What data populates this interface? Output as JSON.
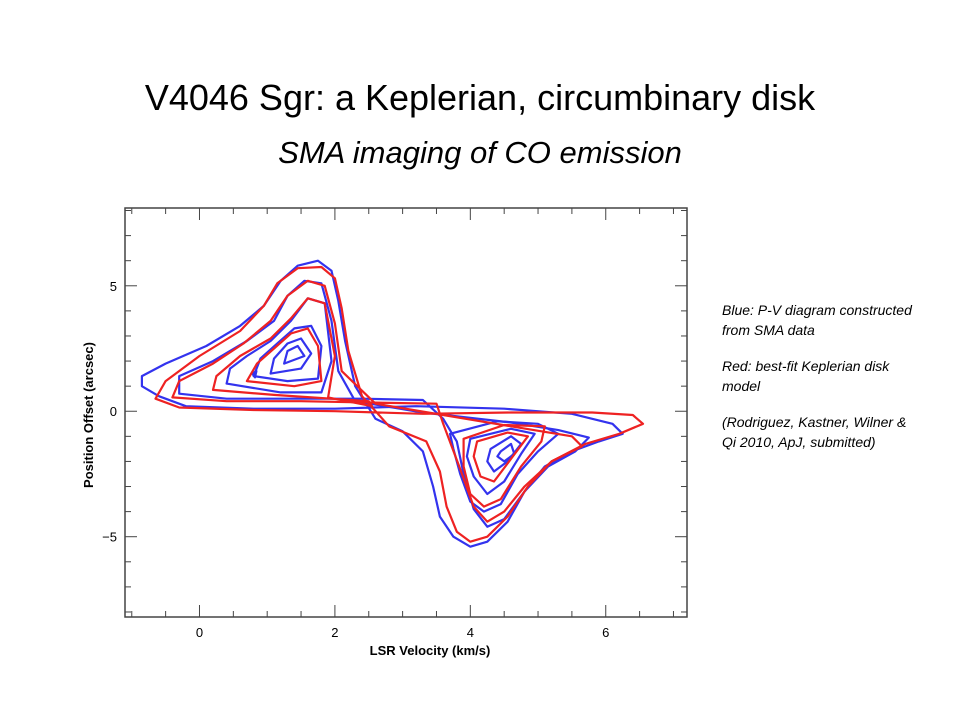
{
  "slide": {
    "title": "V4046 Sgr: a Keplerian, circumbinary disk",
    "subtitle": "SMA imaging of CO emission"
  },
  "notes": {
    "blue": "Blue: P-V diagram constructed from SMA data",
    "red": "Red: best-fit Keplerian disk model",
    "citation": "(Rodriguez, Kastner, Wilner & Qi 2010, ApJ, submitted)"
  },
  "chart_data": {
    "type": "contour",
    "title": "",
    "xlabel": "LSR Velocity (km/s)",
    "ylabel": "Position Offset (arcsec)",
    "xlim": [
      -1.1,
      7.2
    ],
    "ylim": [
      -8.2,
      8.1
    ],
    "xticks": [
      "0",
      "2",
      "4",
      "6"
    ],
    "xtick_values": [
      0,
      2,
      4,
      6
    ],
    "yticks": [
      "5",
      "0",
      "−5"
    ],
    "ytick_values": [
      5,
      0,
      -5
    ],
    "colors": {
      "observed": "#3333ee",
      "model": "#ee2222"
    },
    "series": [
      {
        "name": "Blue: P-V diagram constructed from SMA data",
        "color": "#3333ee",
        "contours": [
          [
            [
              -0.85,
              1.0
            ],
            [
              -0.6,
              0.6
            ],
            [
              -0.2,
              0.2
            ],
            [
              0.8,
              0.1
            ],
            [
              2.0,
              0.1
            ],
            [
              3.2,
              0.2
            ],
            [
              4.5,
              0.1
            ],
            [
              5.5,
              -0.1
            ],
            [
              6.1,
              -0.5
            ],
            [
              6.25,
              -0.9
            ],
            [
              5.9,
              -1.2
            ],
            [
              5.5,
              -1.6
            ],
            [
              5.1,
              -2.2
            ],
            [
              4.8,
              -3.2
            ],
            [
              4.55,
              -4.4
            ],
            [
              4.25,
              -5.2
            ],
            [
              4.0,
              -5.4
            ],
            [
              3.75,
              -5.0
            ],
            [
              3.55,
              -4.2
            ],
            [
              3.45,
              -3.0
            ],
            [
              3.3,
              -1.6
            ],
            [
              3.0,
              -0.8
            ],
            [
              2.6,
              -0.3
            ],
            [
              2.3,
              1.0
            ],
            [
              2.15,
              2.8
            ],
            [
              2.05,
              4.4
            ],
            [
              1.95,
              5.6
            ],
            [
              1.75,
              6.0
            ],
            [
              1.45,
              5.8
            ],
            [
              1.2,
              5.2
            ],
            [
              0.95,
              4.2
            ],
            [
              0.6,
              3.4
            ],
            [
              0.1,
              2.6
            ],
            [
              -0.5,
              1.9
            ],
            [
              -0.85,
              1.4
            ]
          ],
          [
            [
              -0.3,
              0.7
            ],
            [
              0.4,
              0.5
            ],
            [
              1.4,
              0.5
            ],
            [
              2.4,
              0.5
            ],
            [
              3.3,
              0.45
            ],
            [
              3.6,
              -0.3
            ],
            [
              3.8,
              -1.2
            ],
            [
              3.9,
              -2.5
            ],
            [
              4.05,
              -3.9
            ],
            [
              4.25,
              -4.6
            ],
            [
              4.5,
              -4.3
            ],
            [
              4.8,
              -3.2
            ],
            [
              5.15,
              -2.2
            ],
            [
              5.55,
              -1.6
            ],
            [
              5.75,
              -1.05
            ],
            [
              5.3,
              -0.75
            ],
            [
              4.6,
              -0.45
            ],
            [
              3.3,
              -0.05
            ],
            [
              2.3,
              0.4
            ],
            [
              2.05,
              1.6
            ],
            [
              1.95,
              3.6
            ],
            [
              1.8,
              5.1
            ],
            [
              1.55,
              5.2
            ],
            [
              1.3,
              4.6
            ],
            [
              1.1,
              3.6
            ],
            [
              0.7,
              2.8
            ],
            [
              0.2,
              2.0
            ],
            [
              -0.3,
              1.4
            ]
          ],
          [
            [
              0.4,
              1.1
            ],
            [
              1.2,
              0.75
            ],
            [
              1.8,
              0.75
            ],
            [
              1.95,
              2.0
            ],
            [
              1.85,
              4.3
            ],
            [
              1.6,
              4.5
            ],
            [
              1.35,
              3.6
            ],
            [
              1.05,
              2.8
            ],
            [
              0.7,
              2.2
            ],
            [
              0.45,
              1.7
            ]
          ],
          [
            [
              0.8,
              1.4
            ],
            [
              1.3,
              1.2
            ],
            [
              1.75,
              1.3
            ],
            [
              1.8,
              2.6
            ],
            [
              1.65,
              3.4
            ],
            [
              1.4,
              3.3
            ],
            [
              1.15,
              2.7
            ],
            [
              0.9,
              2.1
            ]
          ],
          [
            [
              1.05,
              1.5
            ],
            [
              1.5,
              1.7
            ],
            [
              1.65,
              2.3
            ],
            [
              1.5,
              2.9
            ],
            [
              1.3,
              2.7
            ],
            [
              1.1,
              2.1
            ]
          ],
          [
            [
              1.25,
              1.9
            ],
            [
              1.55,
              2.2
            ],
            [
              1.45,
              2.6
            ],
            [
              1.3,
              2.4
            ]
          ],
          [
            [
              0.78,
              1.5
            ],
            [
              0.84,
              1.6
            ],
            [
              0.82,
              1.35
            ]
          ],
          [
            [
              3.7,
              -0.9
            ],
            [
              4.4,
              -0.4
            ],
            [
              5.0,
              -0.5
            ],
            [
              5.3,
              -0.9
            ],
            [
              5.0,
              -1.6
            ],
            [
              4.7,
              -2.5
            ],
            [
              4.45,
              -3.7
            ],
            [
              4.2,
              -4.0
            ],
            [
              4.0,
              -3.6
            ],
            [
              3.85,
              -2.5
            ],
            [
              3.75,
              -1.5
            ]
          ],
          [
            [
              4.0,
              -1.1
            ],
            [
              4.6,
              -0.7
            ],
            [
              4.95,
              -0.9
            ],
            [
              4.75,
              -1.7
            ],
            [
              4.5,
              -2.8
            ],
            [
              4.25,
              -3.3
            ],
            [
              4.05,
              -2.6
            ],
            [
              3.95,
              -1.8
            ]
          ],
          [
            [
              4.3,
              -1.5
            ],
            [
              4.6,
              -1.0
            ],
            [
              4.75,
              -1.3
            ],
            [
              4.55,
              -2.0
            ],
            [
              4.35,
              -2.4
            ],
            [
              4.25,
              -2.0
            ]
          ],
          [
            [
              4.45,
              -1.6
            ],
            [
              4.6,
              -1.3
            ],
            [
              4.65,
              -1.7
            ],
            [
              4.5,
              -2.0
            ],
            [
              4.4,
              -1.8
            ]
          ]
        ]
      },
      {
        "name": "Red: best-fit Keplerian disk model",
        "color": "#ee2222",
        "contours": [
          [
            [
              -0.65,
              0.5
            ],
            [
              -0.3,
              0.15
            ],
            [
              0.8,
              0.05
            ],
            [
              2.0,
              0.0
            ],
            [
              3.3,
              -0.1
            ],
            [
              4.6,
              -0.05
            ],
            [
              5.8,
              -0.05
            ],
            [
              6.4,
              -0.15
            ],
            [
              6.55,
              -0.5
            ],
            [
              6.2,
              -0.9
            ],
            [
              5.7,
              -1.3
            ],
            [
              5.2,
              -2.0
            ],
            [
              4.85,
              -3.0
            ],
            [
              4.55,
              -4.2
            ],
            [
              4.25,
              -5.0
            ],
            [
              4.0,
              -5.2
            ],
            [
              3.8,
              -4.8
            ],
            [
              3.65,
              -3.8
            ],
            [
              3.55,
              -2.4
            ],
            [
              3.35,
              -1.2
            ],
            [
              2.8,
              -0.6
            ],
            [
              2.4,
              0.6
            ],
            [
              2.2,
              2.4
            ],
            [
              2.1,
              4.1
            ],
            [
              2.0,
              5.3
            ],
            [
              1.8,
              5.75
            ],
            [
              1.45,
              5.7
            ],
            [
              1.15,
              5.1
            ],
            [
              0.95,
              4.2
            ],
            [
              0.6,
              3.2
            ],
            [
              0.0,
              2.2
            ],
            [
              -0.5,
              1.2
            ]
          ],
          [
            [
              -0.4,
              0.55
            ],
            [
              0.4,
              0.4
            ],
            [
              1.5,
              0.4
            ],
            [
              2.5,
              0.35
            ],
            [
              3.5,
              0.3
            ],
            [
              3.6,
              -0.5
            ],
            [
              3.85,
              -2.3
            ],
            [
              4.05,
              -3.8
            ],
            [
              4.25,
              -4.4
            ],
            [
              4.5,
              -4.0
            ],
            [
              4.8,
              -3.0
            ],
            [
              5.2,
              -2.0
            ],
            [
              5.65,
              -1.4
            ],
            [
              5.5,
              -1.0
            ],
            [
              4.6,
              -0.6
            ],
            [
              3.6,
              -0.15
            ],
            [
              2.6,
              0.3
            ],
            [
              2.1,
              1.6
            ],
            [
              2.0,
              3.5
            ],
            [
              1.85,
              5.0
            ],
            [
              1.6,
              5.2
            ],
            [
              1.3,
              4.6
            ],
            [
              1.05,
              3.6
            ],
            [
              0.65,
              2.7
            ],
            [
              0.2,
              1.9
            ],
            [
              -0.3,
              1.2
            ]
          ],
          [
            [
              0.2,
              0.85
            ],
            [
              1.1,
              0.65
            ],
            [
              2.5,
              0.4
            ],
            [
              2.55,
              0.2
            ],
            [
              1.9,
              0.55
            ],
            [
              2.0,
              2.2
            ],
            [
              1.85,
              4.3
            ],
            [
              1.6,
              4.5
            ],
            [
              1.35,
              3.7
            ],
            [
              1.05,
              2.9
            ],
            [
              0.6,
              2.2
            ],
            [
              0.25,
              1.4
            ]
          ],
          [
            [
              0.7,
              1.2
            ],
            [
              1.4,
              1.0
            ],
            [
              1.8,
              1.2
            ],
            [
              1.75,
              2.6
            ],
            [
              1.6,
              3.3
            ],
            [
              1.35,
              3.1
            ],
            [
              1.1,
              2.5
            ],
            [
              0.85,
              1.9
            ]
          ],
          [
            [
              3.9,
              -1.1
            ],
            [
              4.5,
              -0.55
            ],
            [
              5.1,
              -0.6
            ],
            [
              5.05,
              -1.2
            ],
            [
              4.75,
              -2.2
            ],
            [
              4.45,
              -3.5
            ],
            [
              4.2,
              -3.8
            ],
            [
              4.0,
              -3.3
            ],
            [
              3.9,
              -2.2
            ]
          ],
          [
            [
              4.1,
              -1.2
            ],
            [
              4.55,
              -0.85
            ],
            [
              4.85,
              -1.0
            ],
            [
              4.6,
              -1.9
            ],
            [
              4.35,
              -2.8
            ],
            [
              4.15,
              -2.6
            ],
            [
              4.05,
              -1.8
            ]
          ]
        ]
      }
    ]
  }
}
